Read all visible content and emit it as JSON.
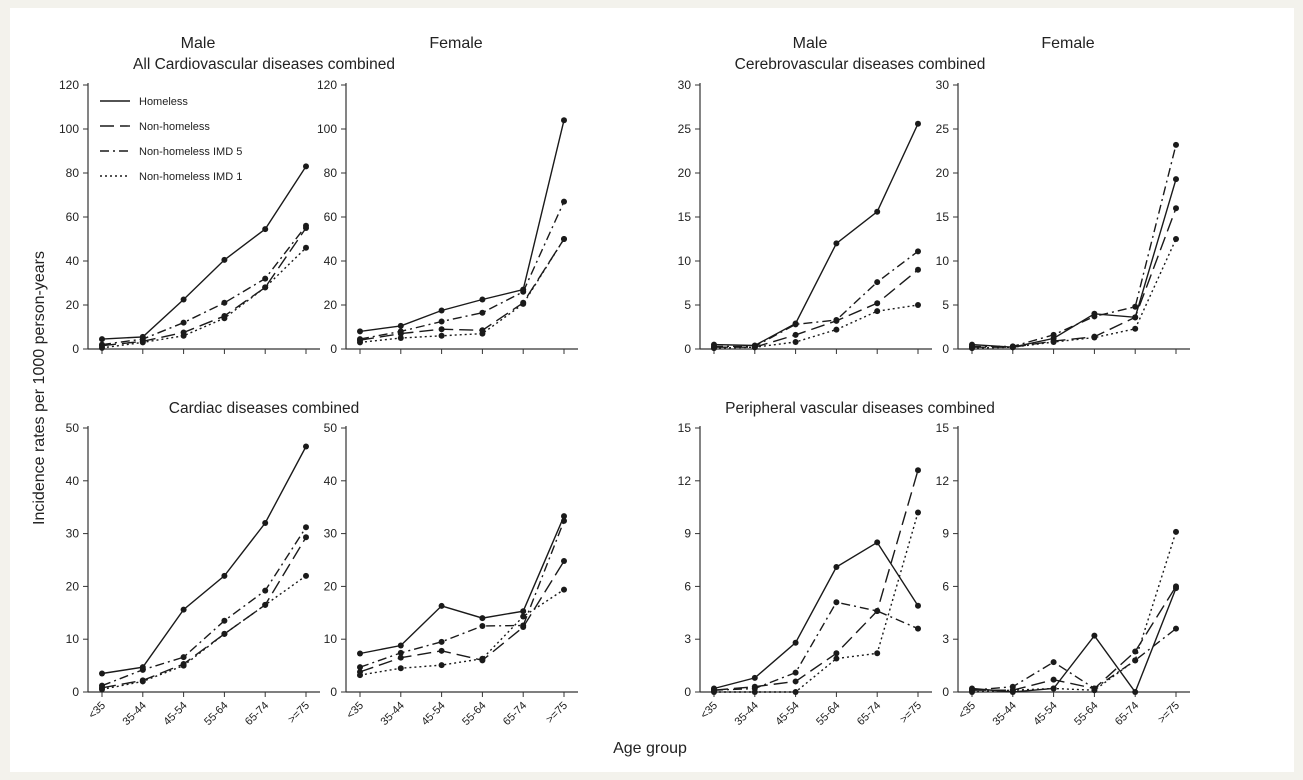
{
  "figure": {
    "y_axis_label": "Incidence rates per 1000 person-years",
    "x_axis_label": "Age group",
    "legend_position": "top-left of first panel"
  },
  "chart_data": [
    {
      "type": "line",
      "group_title": "All Cardiovascular diseases combined",
      "sex": "Male",
      "categories": [
        "<35",
        "35-44",
        "45-54",
        "55-64",
        "65-74",
        ">=75"
      ],
      "ylim": [
        0,
        120
      ],
      "yticks": [
        0,
        20,
        40,
        60,
        80,
        100,
        120
      ],
      "show_legend": true,
      "series": [
        {
          "name": "Homeless",
          "values": [
            4.5,
            5.5,
            22.5,
            40.5,
            54.5,
            83
          ]
        },
        {
          "name": "Non-homeless",
          "values": [
            1.5,
            3.5,
            7.5,
            15,
            28,
            55
          ]
        },
        {
          "name": "Non-homeless IMD 5",
          "values": [
            2,
            4.5,
            12,
            21,
            32,
            56
          ]
        },
        {
          "name": "Non-homeless IMD 1",
          "values": [
            0.5,
            3,
            6,
            14,
            28,
            46
          ]
        }
      ]
    },
    {
      "type": "line",
      "sex": "Female",
      "categories": [
        "<35",
        "35-44",
        "45-54",
        "55-64",
        "65-74",
        ">=75"
      ],
      "ylim": [
        0,
        120
      ],
      "yticks": [
        0,
        20,
        40,
        60,
        80,
        100,
        120
      ],
      "series": [
        {
          "name": "Homeless",
          "values": [
            8,
            10.5,
            17.5,
            22.5,
            27,
            104
          ]
        },
        {
          "name": "Non-homeless",
          "values": [
            4,
            7,
            9,
            8.5,
            21,
            50
          ]
        },
        {
          "name": "Non-homeless IMD 5",
          "values": [
            4.5,
            8,
            12.5,
            16.5,
            26,
            67
          ]
        },
        {
          "name": "Non-homeless IMD 1",
          "values": [
            3,
            5,
            6,
            7,
            20.5,
            50
          ]
        }
      ]
    },
    {
      "type": "line",
      "group_title": "Cerebrovascular diseases combined",
      "sex": "Male",
      "categories": [
        "<35",
        "35-44",
        "45-54",
        "55-64",
        "65-74",
        ">=75"
      ],
      "ylim": [
        0,
        30
      ],
      "yticks": [
        0,
        5,
        10,
        15,
        20,
        25,
        30
      ],
      "series": [
        {
          "name": "Homeless",
          "values": [
            0.5,
            0.4,
            2.9,
            12,
            15.6,
            25.6
          ]
        },
        {
          "name": "Non-homeless",
          "values": [
            0.2,
            0.2,
            1.6,
            3.2,
            5.2,
            9
          ]
        },
        {
          "name": "Non-homeless IMD 5",
          "values": [
            0.3,
            0.3,
            2.8,
            3.3,
            7.6,
            11.1
          ]
        },
        {
          "name": "Non-homeless IMD 1",
          "values": [
            0.1,
            0.2,
            0.8,
            2.2,
            4.3,
            5
          ]
        }
      ]
    },
    {
      "type": "line",
      "sex": "Female",
      "categories": [
        "<35",
        "35-44",
        "45-54",
        "55-64",
        "65-74",
        ">=75"
      ],
      "ylim": [
        0,
        30
      ],
      "yticks": [
        0,
        5,
        10,
        15,
        20,
        25,
        30
      ],
      "series": [
        {
          "name": "Homeless",
          "values": [
            0.5,
            0.2,
            1.2,
            4,
            3.6,
            19.3
          ]
        },
        {
          "name": "Non-homeless",
          "values": [
            0.2,
            0.2,
            0.9,
            1.4,
            3.6,
            16
          ]
        },
        {
          "name": "Non-homeless IMD 5",
          "values": [
            0.3,
            0.3,
            1.6,
            3.7,
            4.8,
            23.2
          ]
        },
        {
          "name": "Non-homeless IMD 1",
          "values": [
            0.1,
            0.2,
            0.8,
            1.3,
            2.3,
            12.5
          ]
        }
      ]
    },
    {
      "type": "line",
      "group_title": "Cardiac diseases combined",
      "sex": "Male",
      "categories": [
        "<35",
        "35-44",
        "45-54",
        "55-64",
        "65-74",
        ">=75"
      ],
      "ylim": [
        0,
        50
      ],
      "yticks": [
        0,
        10,
        20,
        30,
        40,
        50
      ],
      "series": [
        {
          "name": "Homeless",
          "values": [
            3.5,
            4.7,
            15.6,
            22,
            32,
            46.5
          ]
        },
        {
          "name": "Non-homeless",
          "values": [
            0.8,
            2.2,
            5.3,
            11,
            16.5,
            29.3
          ]
        },
        {
          "name": "Non-homeless IMD 5",
          "values": [
            1.2,
            4.2,
            6.6,
            13.5,
            19.2,
            31.2
          ]
        },
        {
          "name": "Non-homeless IMD 1",
          "values": [
            0.5,
            2,
            5,
            11,
            16.5,
            22
          ]
        }
      ]
    },
    {
      "type": "line",
      "sex": "Female",
      "categories": [
        "<35",
        "35-44",
        "45-54",
        "55-64",
        "65-74",
        ">=75"
      ],
      "ylim": [
        0,
        50
      ],
      "yticks": [
        0,
        10,
        20,
        30,
        40,
        50
      ],
      "series": [
        {
          "name": "Homeless",
          "values": [
            7.3,
            8.8,
            16.3,
            14,
            15.3,
            33.3
          ]
        },
        {
          "name": "Non-homeless",
          "values": [
            3.8,
            6.5,
            7.8,
            6,
            12.3,
            24.8
          ]
        },
        {
          "name": "Non-homeless IMD 5",
          "values": [
            4.7,
            7.4,
            9.5,
            12.5,
            12.6,
            32.4
          ]
        },
        {
          "name": "Non-homeless IMD 1",
          "values": [
            3.2,
            4.5,
            5.1,
            6.3,
            14.3,
            19.4
          ]
        }
      ]
    },
    {
      "type": "line",
      "group_title": "Peripheral vascular diseases combined",
      "sex": "Male",
      "categories": [
        "<35",
        "35-44",
        "45-54",
        "55-64",
        "65-74",
        ">=75"
      ],
      "ylim": [
        0,
        15
      ],
      "yticks": [
        0,
        3,
        6,
        9,
        12,
        15
      ],
      "series": [
        {
          "name": "Homeless",
          "values": [
            0.2,
            0.8,
            2.8,
            7.1,
            8.5,
            4.9
          ]
        },
        {
          "name": "Non-homeless",
          "values": [
            0.1,
            0.3,
            0.6,
            2.2,
            4.6,
            12.6
          ]
        },
        {
          "name": "Non-homeless IMD 5",
          "values": [
            0.1,
            0.2,
            1.1,
            5.1,
            4.6,
            3.6
          ]
        },
        {
          "name": "Non-homeless IMD 1",
          "values": [
            0,
            0,
            0,
            1.9,
            2.2,
            10.2
          ]
        }
      ]
    },
    {
      "type": "line",
      "sex": "Female",
      "categories": [
        "<35",
        "35-44",
        "45-54",
        "55-64",
        "65-74",
        ">=75"
      ],
      "ylim": [
        0,
        15
      ],
      "yticks": [
        0,
        3,
        6,
        9,
        12,
        15
      ],
      "series": [
        {
          "name": "Homeless",
          "values": [
            0.2,
            0,
            0.2,
            3.2,
            0,
            5.9
          ]
        },
        {
          "name": "Non-homeless",
          "values": [
            0.1,
            0.1,
            0.7,
            0.2,
            2.3,
            6
          ]
        },
        {
          "name": "Non-homeless IMD 5",
          "values": [
            0.1,
            0.3,
            1.7,
            0.2,
            1.8,
            3.6
          ]
        },
        {
          "name": "Non-homeless IMD 1",
          "values": [
            0,
            0.1,
            0.2,
            0.1,
            1.8,
            9.1
          ]
        }
      ]
    }
  ],
  "series_styles": [
    {
      "name": "Homeless",
      "dash": ""
    },
    {
      "name": "Non-homeless",
      "dash": "14 6"
    },
    {
      "name": "Non-homeless IMD 5",
      "dash": "9 4 2 4"
    },
    {
      "name": "Non-homeless IMD 1",
      "dash": "2 3"
    }
  ],
  "colors": {
    "line": "#1a1a1a",
    "axis": "#333333",
    "background": "#ffffff",
    "frame": "#f3f2ec"
  }
}
